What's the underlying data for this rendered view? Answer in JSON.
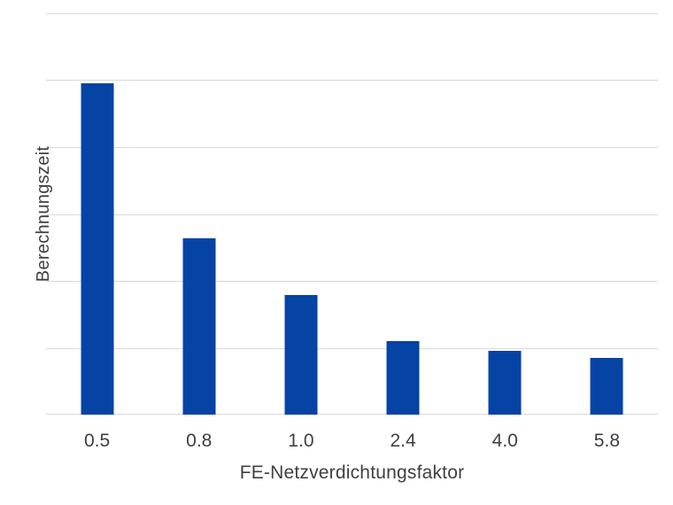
{
  "chart_data": {
    "type": "bar",
    "categories": [
      "0.5",
      "0.8",
      "1.0",
      "2.4",
      "4.0",
      "5.8"
    ],
    "values": [
      4.95,
      2.64,
      1.79,
      1.1,
      0.95,
      0.85
    ],
    "title": "",
    "xlabel": "FE-Netzverdichtungsfaktor",
    "ylabel": "Berechnungszeit",
    "ylim": [
      0,
      6
    ],
    "y_gridline_step": 1,
    "y_tick_labels_visible": false,
    "grid": true,
    "legend_position": "none",
    "colors": {
      "bar": "#0543A5",
      "gridline": "#D9D9D9",
      "text": "#404040",
      "background": "#FFFFFF"
    }
  }
}
